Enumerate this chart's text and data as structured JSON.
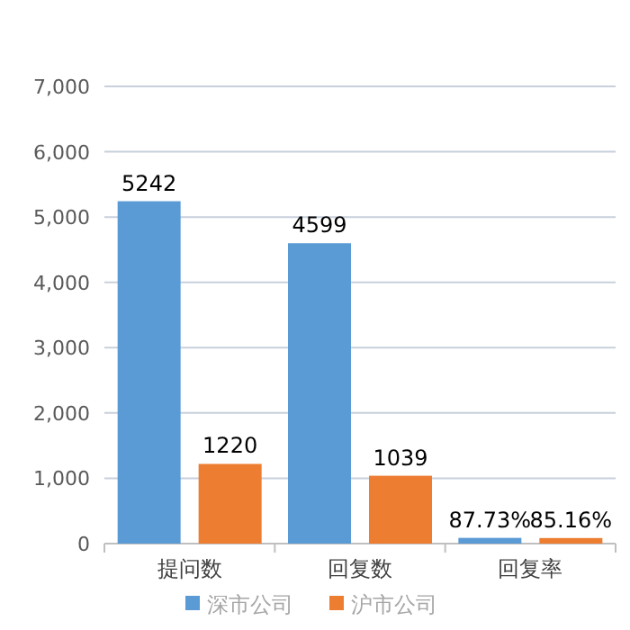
{
  "chart_data": {
    "type": "bar",
    "categories": [
      "提问数",
      "回复数",
      "回复率"
    ],
    "series": [
      {
        "name": "深市公司",
        "color": "#5b9bd5",
        "values": [
          5242,
          4599,
          87.73
        ],
        "value_labels": [
          "5242",
          "4599",
          "87.73%"
        ]
      },
      {
        "name": "沪市公司",
        "color": "#ed7d31",
        "values": [
          1220,
          1039,
          85.16
        ],
        "value_labels": [
          "1220",
          "1039",
          "85.16%"
        ]
      }
    ],
    "ylim": [
      0,
      7000
    ],
    "yticks": [
      0,
      {
        "value": 1000,
        "label": "1,000"
      },
      {
        "value": 2000,
        "label": "2,000"
      },
      {
        "value": 3000,
        "label": "3,000"
      },
      {
        "value": 4000,
        "label": "4,000"
      },
      {
        "value": 5000,
        "label": "5,000"
      },
      {
        "value": 6000,
        "label": "6,000"
      },
      {
        "value": 7000,
        "label": "7,000"
      }
    ],
    "grid": "y",
    "legend": "bottom"
  }
}
